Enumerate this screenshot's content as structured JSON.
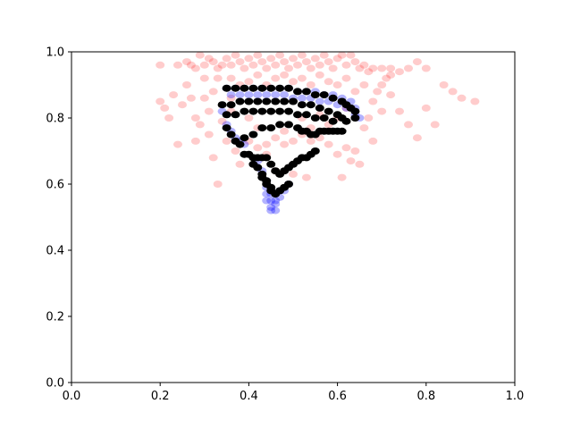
{
  "chart_data": {
    "type": "scatter",
    "title": "",
    "xlabel": "",
    "ylabel": "",
    "xlim": [
      0,
      1
    ],
    "ylim": [
      0,
      1
    ],
    "grid": false,
    "legend": "none",
    "x_ticks": [
      "0.0",
      "0.2",
      "0.4",
      "0.6",
      "0.8",
      "1.0"
    ],
    "y_ticks": [
      "0.0",
      "0.2",
      "0.4",
      "0.6",
      "0.8",
      "1.0"
    ],
    "colors": {
      "red_series": "#ff0000",
      "blue_series": "#0000ff",
      "black_series": "#000000",
      "axes": "#000000",
      "background": "#ffffff"
    },
    "series": [
      {
        "color": "red",
        "alpha": 0.2,
        "points": [
          [
            0.2,
            0.96
          ],
          [
            0.24,
            0.96
          ],
          [
            0.26,
            0.97
          ],
          [
            0.27,
            0.96
          ],
          [
            0.28,
            0.95
          ],
          [
            0.29,
            0.99
          ],
          [
            0.3,
            0.96
          ],
          [
            0.31,
            0.98
          ],
          [
            0.32,
            0.97
          ],
          [
            0.33,
            0.95
          ],
          [
            0.34,
            0.96
          ],
          [
            0.35,
            0.98
          ],
          [
            0.36,
            0.96
          ],
          [
            0.37,
            0.99
          ],
          [
            0.38,
            0.97
          ],
          [
            0.39,
            0.95
          ],
          [
            0.4,
            0.98
          ],
          [
            0.41,
            0.96
          ],
          [
            0.42,
            0.99
          ],
          [
            0.43,
            0.97
          ],
          [
            0.44,
            0.95
          ],
          [
            0.45,
            0.98
          ],
          [
            0.46,
            0.96
          ],
          [
            0.47,
            0.99
          ],
          [
            0.48,
            0.97
          ],
          [
            0.49,
            0.95
          ],
          [
            0.5,
            0.98
          ],
          [
            0.51,
            0.96
          ],
          [
            0.52,
            0.99
          ],
          [
            0.53,
            0.97
          ],
          [
            0.54,
            0.95
          ],
          [
            0.55,
            0.98
          ],
          [
            0.56,
            0.96
          ],
          [
            0.57,
            0.99
          ],
          [
            0.58,
            0.97
          ],
          [
            0.59,
            0.95
          ],
          [
            0.6,
            0.98
          ],
          [
            0.61,
            0.99
          ],
          [
            0.62,
            0.96
          ],
          [
            0.63,
            0.99
          ],
          [
            0.64,
            0.97
          ],
          [
            0.65,
            0.95
          ],
          [
            0.66,
            0.96
          ],
          [
            0.67,
            0.94
          ],
          [
            0.68,
            0.95
          ],
          [
            0.7,
            0.95
          ],
          [
            0.72,
            0.95
          ],
          [
            0.76,
            0.95
          ],
          [
            0.78,
            0.97
          ],
          [
            0.8,
            0.95
          ],
          [
            0.2,
            0.85
          ],
          [
            0.21,
            0.83
          ],
          [
            0.22,
            0.8
          ],
          [
            0.23,
            0.87
          ],
          [
            0.24,
            0.72
          ],
          [
            0.25,
            0.84
          ],
          [
            0.26,
            0.9
          ],
          [
            0.27,
            0.86
          ],
          [
            0.28,
            0.8
          ],
          [
            0.28,
            0.73
          ],
          [
            0.29,
            0.78
          ],
          [
            0.3,
            0.92
          ],
          [
            0.3,
            0.86
          ],
          [
            0.31,
            0.75
          ],
          [
            0.31,
            0.82
          ],
          [
            0.32,
            0.68
          ],
          [
            0.32,
            0.88
          ],
          [
            0.33,
            0.6
          ],
          [
            0.33,
            0.92
          ],
          [
            0.34,
            0.79
          ],
          [
            0.35,
            0.73
          ],
          [
            0.36,
            0.86
          ],
          [
            0.37,
            0.7
          ],
          [
            0.38,
            0.66
          ],
          [
            0.4,
            0.73
          ],
          [
            0.42,
            0.71
          ],
          [
            0.44,
            0.72
          ],
          [
            0.46,
            0.74
          ],
          [
            0.48,
            0.72
          ],
          [
            0.5,
            0.73
          ],
          [
            0.52,
            0.75
          ],
          [
            0.54,
            0.73
          ],
          [
            0.56,
            0.74
          ],
          [
            0.58,
            0.72
          ],
          [
            0.6,
            0.69
          ],
          [
            0.61,
            0.62
          ],
          [
            0.62,
            0.71
          ],
          [
            0.63,
            0.67
          ],
          [
            0.64,
            0.7
          ],
          [
            0.65,
            0.66
          ],
          [
            0.66,
            0.77
          ],
          [
            0.67,
            0.8
          ],
          [
            0.68,
            0.73
          ],
          [
            0.68,
            0.85
          ],
          [
            0.69,
            0.88
          ],
          [
            0.7,
            0.82
          ],
          [
            0.71,
            0.92
          ],
          [
            0.72,
            0.87
          ],
          [
            0.74,
            0.82
          ],
          [
            0.76,
            0.78
          ],
          [
            0.78,
            0.74
          ],
          [
            0.8,
            0.83
          ],
          [
            0.82,
            0.78
          ],
          [
            0.84,
            0.9
          ],
          [
            0.86,
            0.88
          ],
          [
            0.88,
            0.86
          ],
          [
            0.91,
            0.85
          ],
          [
            0.72,
            0.93
          ],
          [
            0.7,
            0.9
          ],
          [
            0.74,
            0.94
          ],
          [
            0.36,
            0.92
          ],
          [
            0.38,
            0.9
          ],
          [
            0.4,
            0.91
          ],
          [
            0.42,
            0.93
          ],
          [
            0.44,
            0.9
          ],
          [
            0.46,
            0.92
          ],
          [
            0.48,
            0.93
          ],
          [
            0.5,
            0.91
          ],
          [
            0.52,
            0.92
          ],
          [
            0.54,
            0.9
          ],
          [
            0.56,
            0.93
          ],
          [
            0.58,
            0.91
          ],
          [
            0.6,
            0.9
          ],
          [
            0.62,
            0.92
          ],
          [
            0.64,
            0.88
          ],
          [
            0.66,
            0.9
          ],
          [
            0.44,
            0.69
          ],
          [
            0.5,
            0.63
          ],
          [
            0.53,
            0.62
          ],
          [
            0.46,
            0.64
          ],
          [
            0.42,
            0.77
          ],
          [
            0.48,
            0.76
          ],
          [
            0.54,
            0.77
          ],
          [
            0.58,
            0.78
          ],
          [
            0.4,
            0.8
          ],
          [
            0.52,
            0.8
          ],
          [
            0.56,
            0.81
          ],
          [
            0.6,
            0.8
          ],
          [
            0.36,
            0.82
          ],
          [
            0.62,
            0.83
          ]
        ]
      },
      {
        "color": "blue",
        "alpha": 0.3,
        "points": [
          [
            0.35,
            0.89
          ],
          [
            0.37,
            0.89
          ],
          [
            0.39,
            0.89
          ],
          [
            0.41,
            0.89
          ],
          [
            0.43,
            0.89
          ],
          [
            0.45,
            0.89
          ],
          [
            0.47,
            0.89
          ],
          [
            0.49,
            0.89
          ],
          [
            0.51,
            0.88
          ],
          [
            0.53,
            0.88
          ],
          [
            0.55,
            0.88
          ],
          [
            0.57,
            0.87
          ],
          [
            0.59,
            0.87
          ],
          [
            0.61,
            0.86
          ],
          [
            0.63,
            0.85
          ],
          [
            0.64,
            0.83
          ],
          [
            0.64,
            0.81
          ],
          [
            0.65,
            0.8
          ],
          [
            0.36,
            0.87
          ],
          [
            0.38,
            0.87
          ],
          [
            0.4,
            0.87
          ],
          [
            0.42,
            0.87
          ],
          [
            0.44,
            0.87
          ],
          [
            0.46,
            0.87
          ],
          [
            0.48,
            0.87
          ],
          [
            0.5,
            0.86
          ],
          [
            0.52,
            0.86
          ],
          [
            0.54,
            0.86
          ],
          [
            0.56,
            0.85
          ],
          [
            0.58,
            0.85
          ],
          [
            0.6,
            0.84
          ],
          [
            0.62,
            0.83
          ],
          [
            0.34,
            0.82
          ],
          [
            0.35,
            0.78
          ],
          [
            0.36,
            0.76
          ],
          [
            0.37,
            0.74
          ],
          [
            0.38,
            0.73
          ],
          [
            0.39,
            0.72
          ],
          [
            0.42,
            0.67
          ],
          [
            0.43,
            0.64
          ],
          [
            0.44,
            0.61
          ],
          [
            0.44,
            0.59
          ],
          [
            0.45,
            0.57
          ],
          [
            0.45,
            0.55
          ],
          [
            0.45,
            0.53
          ],
          [
            0.45,
            0.52
          ],
          [
            0.46,
            0.52
          ],
          [
            0.46,
            0.54
          ],
          [
            0.47,
            0.56
          ],
          [
            0.48,
            0.58
          ],
          [
            0.49,
            0.6
          ],
          [
            0.44,
            0.57
          ],
          [
            0.44,
            0.55
          ],
          [
            0.46,
            0.55
          ],
          [
            0.47,
            0.58
          ]
        ]
      },
      {
        "color": "black",
        "alpha": 1.0,
        "points": [
          [
            0.35,
            0.89
          ],
          [
            0.37,
            0.89
          ],
          [
            0.39,
            0.89
          ],
          [
            0.41,
            0.89
          ],
          [
            0.43,
            0.89
          ],
          [
            0.45,
            0.89
          ],
          [
            0.47,
            0.89
          ],
          [
            0.49,
            0.89
          ],
          [
            0.51,
            0.88
          ],
          [
            0.53,
            0.88
          ],
          [
            0.55,
            0.87
          ],
          [
            0.57,
            0.87
          ],
          [
            0.59,
            0.86
          ],
          [
            0.61,
            0.85
          ],
          [
            0.62,
            0.84
          ],
          [
            0.63,
            0.83
          ],
          [
            0.64,
            0.82
          ],
          [
            0.64,
            0.8
          ],
          [
            0.34,
            0.84
          ],
          [
            0.36,
            0.84
          ],
          [
            0.38,
            0.85
          ],
          [
            0.4,
            0.85
          ],
          [
            0.42,
            0.85
          ],
          [
            0.44,
            0.85
          ],
          [
            0.46,
            0.85
          ],
          [
            0.48,
            0.85
          ],
          [
            0.5,
            0.85
          ],
          [
            0.52,
            0.84
          ],
          [
            0.54,
            0.84
          ],
          [
            0.56,
            0.83
          ],
          [
            0.58,
            0.82
          ],
          [
            0.6,
            0.81
          ],
          [
            0.61,
            0.8
          ],
          [
            0.62,
            0.79
          ],
          [
            0.35,
            0.81
          ],
          [
            0.37,
            0.81
          ],
          [
            0.39,
            0.82
          ],
          [
            0.41,
            0.82
          ],
          [
            0.43,
            0.82
          ],
          [
            0.45,
            0.82
          ],
          [
            0.47,
            0.82
          ],
          [
            0.49,
            0.82
          ],
          [
            0.51,
            0.81
          ],
          [
            0.53,
            0.81
          ],
          [
            0.55,
            0.8
          ],
          [
            0.57,
            0.8
          ],
          [
            0.59,
            0.79
          ],
          [
            0.35,
            0.77
          ],
          [
            0.36,
            0.75
          ],
          [
            0.37,
            0.73
          ],
          [
            0.38,
            0.72
          ],
          [
            0.39,
            0.74
          ],
          [
            0.41,
            0.75
          ],
          [
            0.43,
            0.77
          ],
          [
            0.45,
            0.77
          ],
          [
            0.47,
            0.78
          ],
          [
            0.49,
            0.78
          ],
          [
            0.51,
            0.77
          ],
          [
            0.52,
            0.76
          ],
          [
            0.53,
            0.76
          ],
          [
            0.54,
            0.75
          ],
          [
            0.55,
            0.75
          ],
          [
            0.56,
            0.76
          ],
          [
            0.57,
            0.76
          ],
          [
            0.58,
            0.76
          ],
          [
            0.59,
            0.76
          ],
          [
            0.6,
            0.76
          ],
          [
            0.61,
            0.76
          ],
          [
            0.39,
            0.69
          ],
          [
            0.4,
            0.69
          ],
          [
            0.41,
            0.68
          ],
          [
            0.42,
            0.68
          ],
          [
            0.43,
            0.68
          ],
          [
            0.44,
            0.68
          ],
          [
            0.45,
            0.66
          ],
          [
            0.46,
            0.64
          ],
          [
            0.47,
            0.63
          ],
          [
            0.48,
            0.64
          ],
          [
            0.49,
            0.65
          ],
          [
            0.5,
            0.66
          ],
          [
            0.51,
            0.67
          ],
          [
            0.52,
            0.68
          ],
          [
            0.53,
            0.68
          ],
          [
            0.54,
            0.69
          ],
          [
            0.55,
            0.7
          ],
          [
            0.41,
            0.66
          ],
          [
            0.42,
            0.65
          ],
          [
            0.43,
            0.63
          ],
          [
            0.44,
            0.61
          ],
          [
            0.45,
            0.59
          ],
          [
            0.45,
            0.58
          ],
          [
            0.46,
            0.57
          ],
          [
            0.47,
            0.58
          ],
          [
            0.48,
            0.59
          ],
          [
            0.49,
            0.6
          ],
          [
            0.43,
            0.62
          ],
          [
            0.44,
            0.6
          ]
        ]
      }
    ]
  }
}
